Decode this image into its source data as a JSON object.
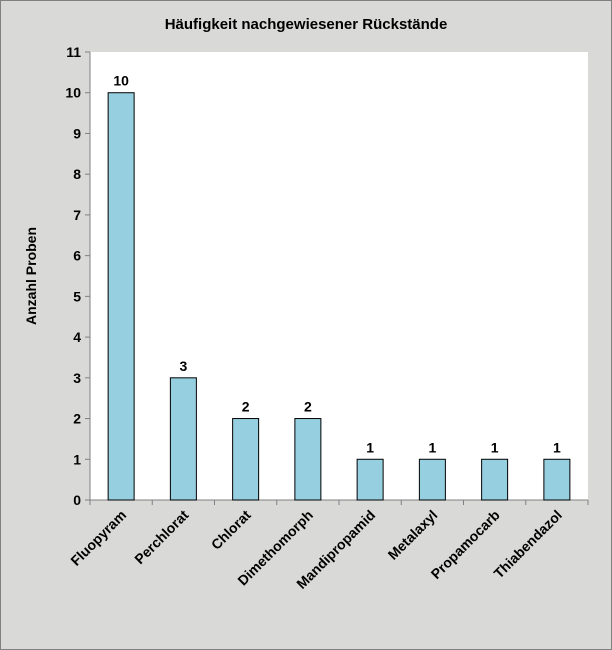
{
  "chart_data": {
    "type": "bar",
    "title": "Häufigkeit nachgewiesener Rückstände",
    "xlabel": "",
    "ylabel": "Anzahl Proben",
    "ylim": [
      0,
      11
    ],
    "yticks": [
      0,
      1,
      2,
      3,
      4,
      5,
      6,
      7,
      8,
      9,
      10,
      11
    ],
    "grid": false,
    "categories": [
      "Fluopyram",
      "Perchlorat",
      "Chlorat",
      "Dimethomorph",
      "Mandipropamid",
      "Metalaxyl",
      "Propamocarb",
      "Thiabendazol"
    ],
    "values": [
      10,
      3,
      2,
      2,
      1,
      1,
      1,
      1
    ],
    "colors": {
      "bar": "#96cfe0",
      "bar_border": "#000000",
      "plot_bg": "#ffffff",
      "page_bg": "#d9dad7"
    }
  }
}
